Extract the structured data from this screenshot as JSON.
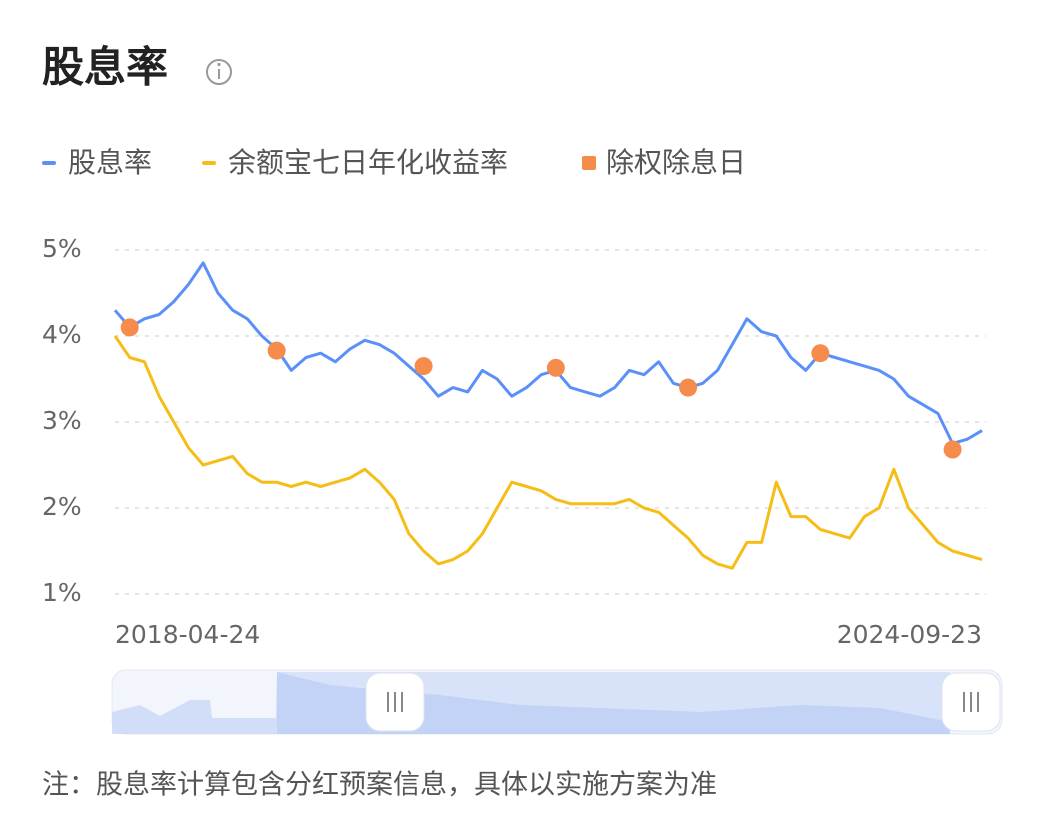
{
  "chart_data": {
    "type": "line",
    "title": "股息率",
    "note": "注：股息率计算包含分红预案信息，具体以实施方案为准",
    "ylim": [
      1,
      5
    ],
    "yticks": [
      {
        "value": 1,
        "label": "1%"
      },
      {
        "value": 2,
        "label": "2%"
      },
      {
        "value": 3,
        "label": "3%"
      },
      {
        "value": 4,
        "label": "4%"
      },
      {
        "value": 5,
        "label": "5%"
      }
    ],
    "grid": true,
    "x_labels": [
      "2018-04-24",
      "2024-09-23"
    ],
    "series": [
      {
        "name": "股息率",
        "color": "#5b8ff9",
        "type": "line",
        "values": [
          4.3,
          4.1,
          4.2,
          4.25,
          4.4,
          4.6,
          4.85,
          4.5,
          4.3,
          4.2,
          4.0,
          3.85,
          3.6,
          3.75,
          3.8,
          3.7,
          3.85,
          3.95,
          3.9,
          3.8,
          3.65,
          3.5,
          3.3,
          3.4,
          3.35,
          3.6,
          3.5,
          3.3,
          3.4,
          3.55,
          3.6,
          3.4,
          3.35,
          3.3,
          3.4,
          3.6,
          3.55,
          3.7,
          3.45,
          3.4,
          3.45,
          3.6,
          3.9,
          4.2,
          4.05,
          4.0,
          3.75,
          3.6,
          3.8,
          3.75,
          3.7,
          3.65,
          3.6,
          3.5,
          3.3,
          3.2,
          3.1,
          2.75,
          2.8,
          2.9
        ]
      },
      {
        "name": "余额宝七日年化收益率",
        "color": "#f6bd16",
        "type": "line",
        "values": [
          4.0,
          3.75,
          3.7,
          3.3,
          3.0,
          2.7,
          2.5,
          2.55,
          2.6,
          2.4,
          2.3,
          2.3,
          2.25,
          2.3,
          2.25,
          2.3,
          2.35,
          2.45,
          2.3,
          2.1,
          1.7,
          1.5,
          1.35,
          1.4,
          1.5,
          1.7,
          2.0,
          2.3,
          2.25,
          2.2,
          2.1,
          2.05,
          2.05,
          2.05,
          2.05,
          2.1,
          2.0,
          1.95,
          1.8,
          1.65,
          1.45,
          1.35,
          1.3,
          1.6,
          1.6,
          2.3,
          1.9,
          1.9,
          1.75,
          1.7,
          1.65,
          1.9,
          2.0,
          2.45,
          2.0,
          1.8,
          1.6,
          1.5,
          1.45,
          1.4
        ]
      },
      {
        "name": "除权除息日",
        "color": "#f58c4c",
        "type": "scatter",
        "values": [
          null,
          4.1,
          null,
          null,
          null,
          null,
          null,
          null,
          null,
          null,
          null,
          3.83,
          null,
          null,
          null,
          null,
          null,
          null,
          null,
          null,
          null,
          3.65,
          null,
          null,
          null,
          null,
          null,
          null,
          null,
          null,
          3.63,
          null,
          null,
          null,
          null,
          null,
          null,
          null,
          null,
          3.4,
          null,
          null,
          null,
          null,
          null,
          null,
          null,
          null,
          3.8,
          null,
          null,
          null,
          null,
          null,
          null,
          null,
          null,
          2.68,
          null,
          null
        ]
      }
    ]
  }
}
